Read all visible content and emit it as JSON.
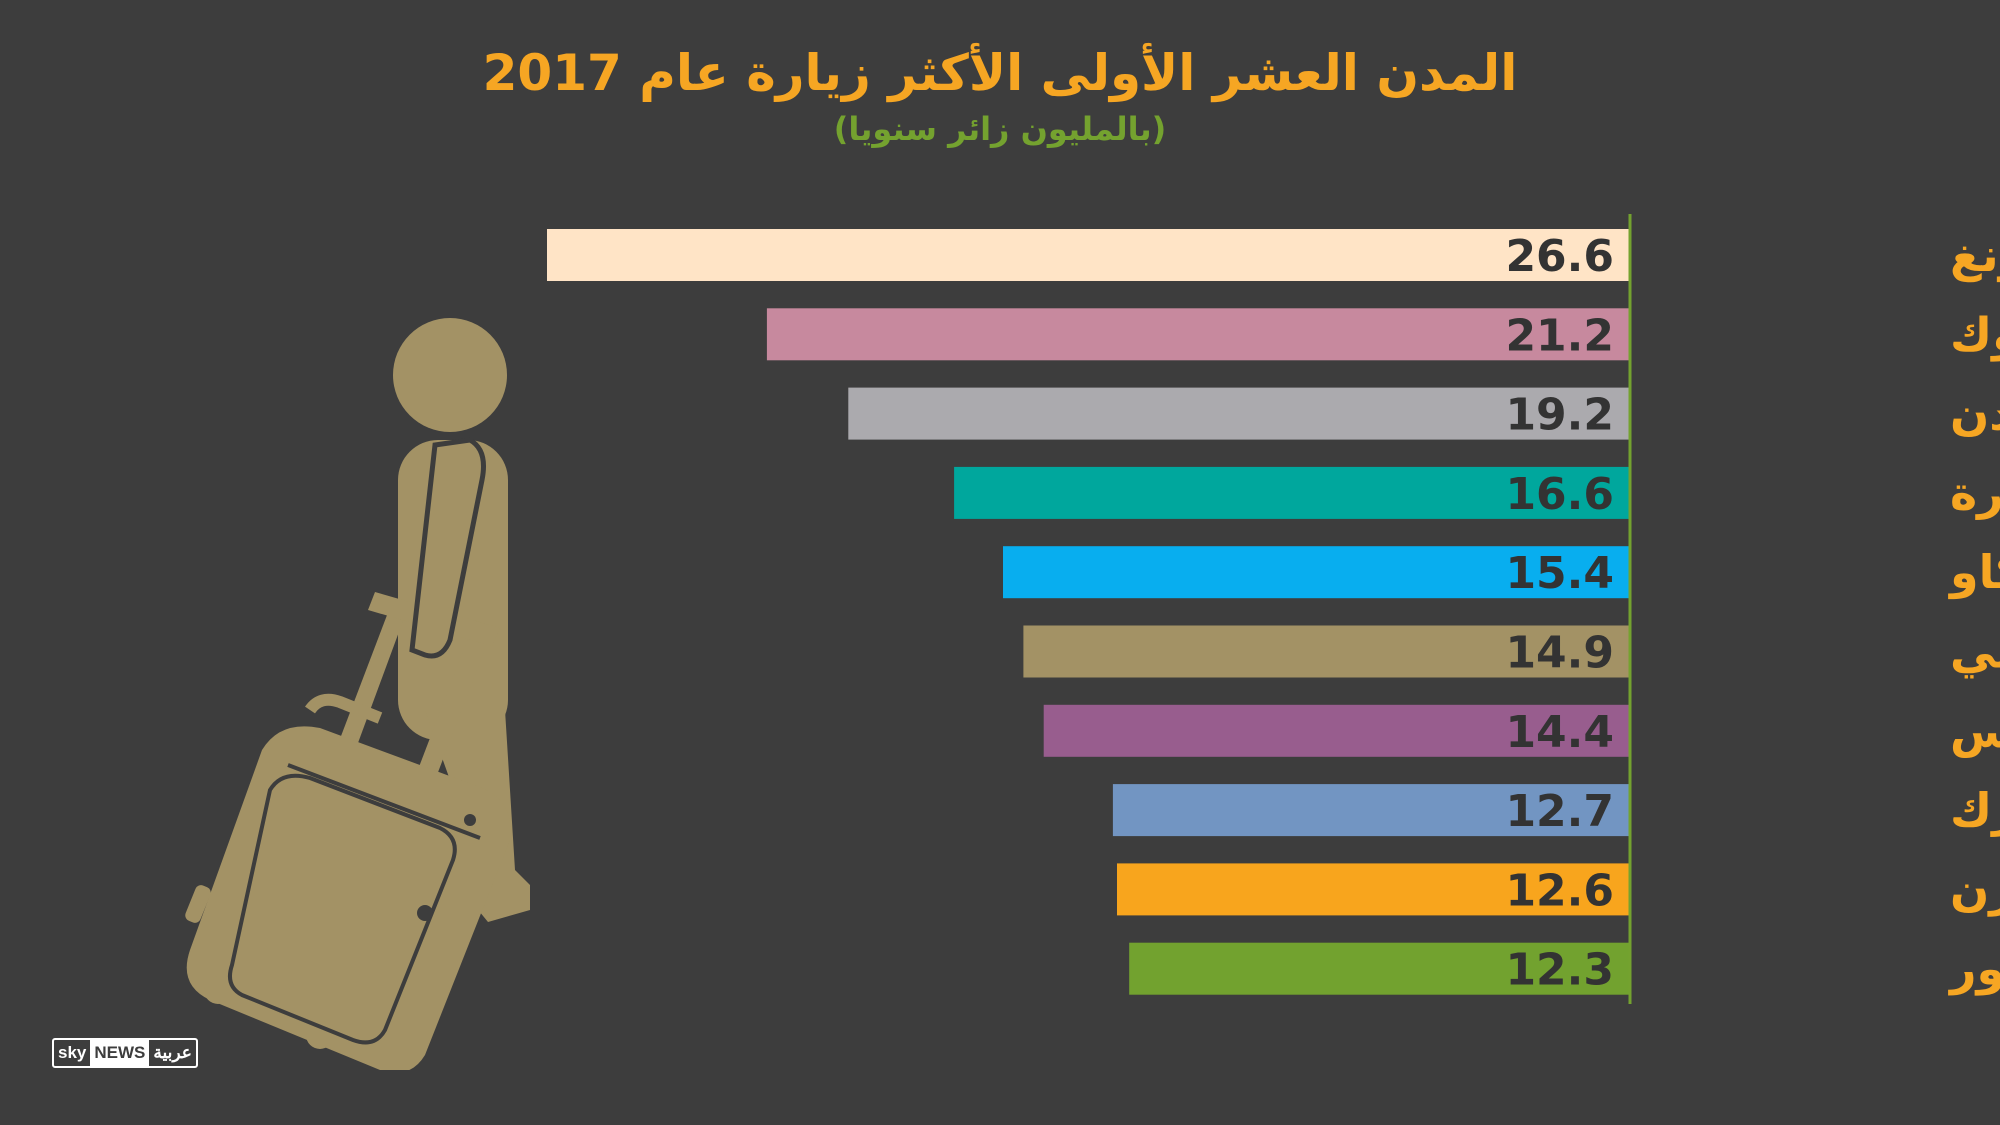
{
  "header": {
    "title": "المدن العشر الأولى الأكثر زيارة عام 2017",
    "subtitle": "(بالمليون زائر سنويا)"
  },
  "logo": {
    "part1": "sky",
    "part2": "NEWS",
    "part3": "عربية"
  },
  "icons": {
    "illustration": "traveler-with-suitcase-icon"
  },
  "colors": {
    "background": "#3d3d3d",
    "title": "#f6a623",
    "subtitle": "#74a22f",
    "city_label": "#f6a623",
    "value_text": "#333333",
    "axis_line": "#74a22f",
    "illustration": "#a39265"
  },
  "chart_data": {
    "type": "bar",
    "orientation": "horizontal",
    "title": "المدن العشر الأولى الأكثر زيارة عام 2017",
    "subtitle": "(بالمليون زائر سنويا)",
    "xlabel": "",
    "ylabel": "",
    "xlim": [
      0,
      26.6
    ],
    "grid": false,
    "categories": [
      "هونغ كونغ",
      "بانكوك",
      "لندن",
      "سنغافورة",
      "مكاو",
      "دبي",
      "باريس",
      "نيويورك",
      "شينزن",
      "كوالالمبور"
    ],
    "values": [
      26.6,
      21.2,
      19.2,
      16.6,
      15.4,
      14.9,
      14.4,
      12.7,
      12.6,
      12.3
    ],
    "value_labels": [
      "26.6",
      "21.2",
      "19.2",
      "16.6",
      "15.4",
      "14.9",
      "14.4",
      "12.7",
      "12.6",
      "12.3"
    ],
    "bar_colors": [
      "#ffe4c6",
      "#c7899e",
      "#abaaae",
      "#00a79d",
      "#08aeef",
      "#a39265",
      "#985d8e",
      "#7295c2",
      "#f8a51d",
      "#72a22f"
    ]
  }
}
